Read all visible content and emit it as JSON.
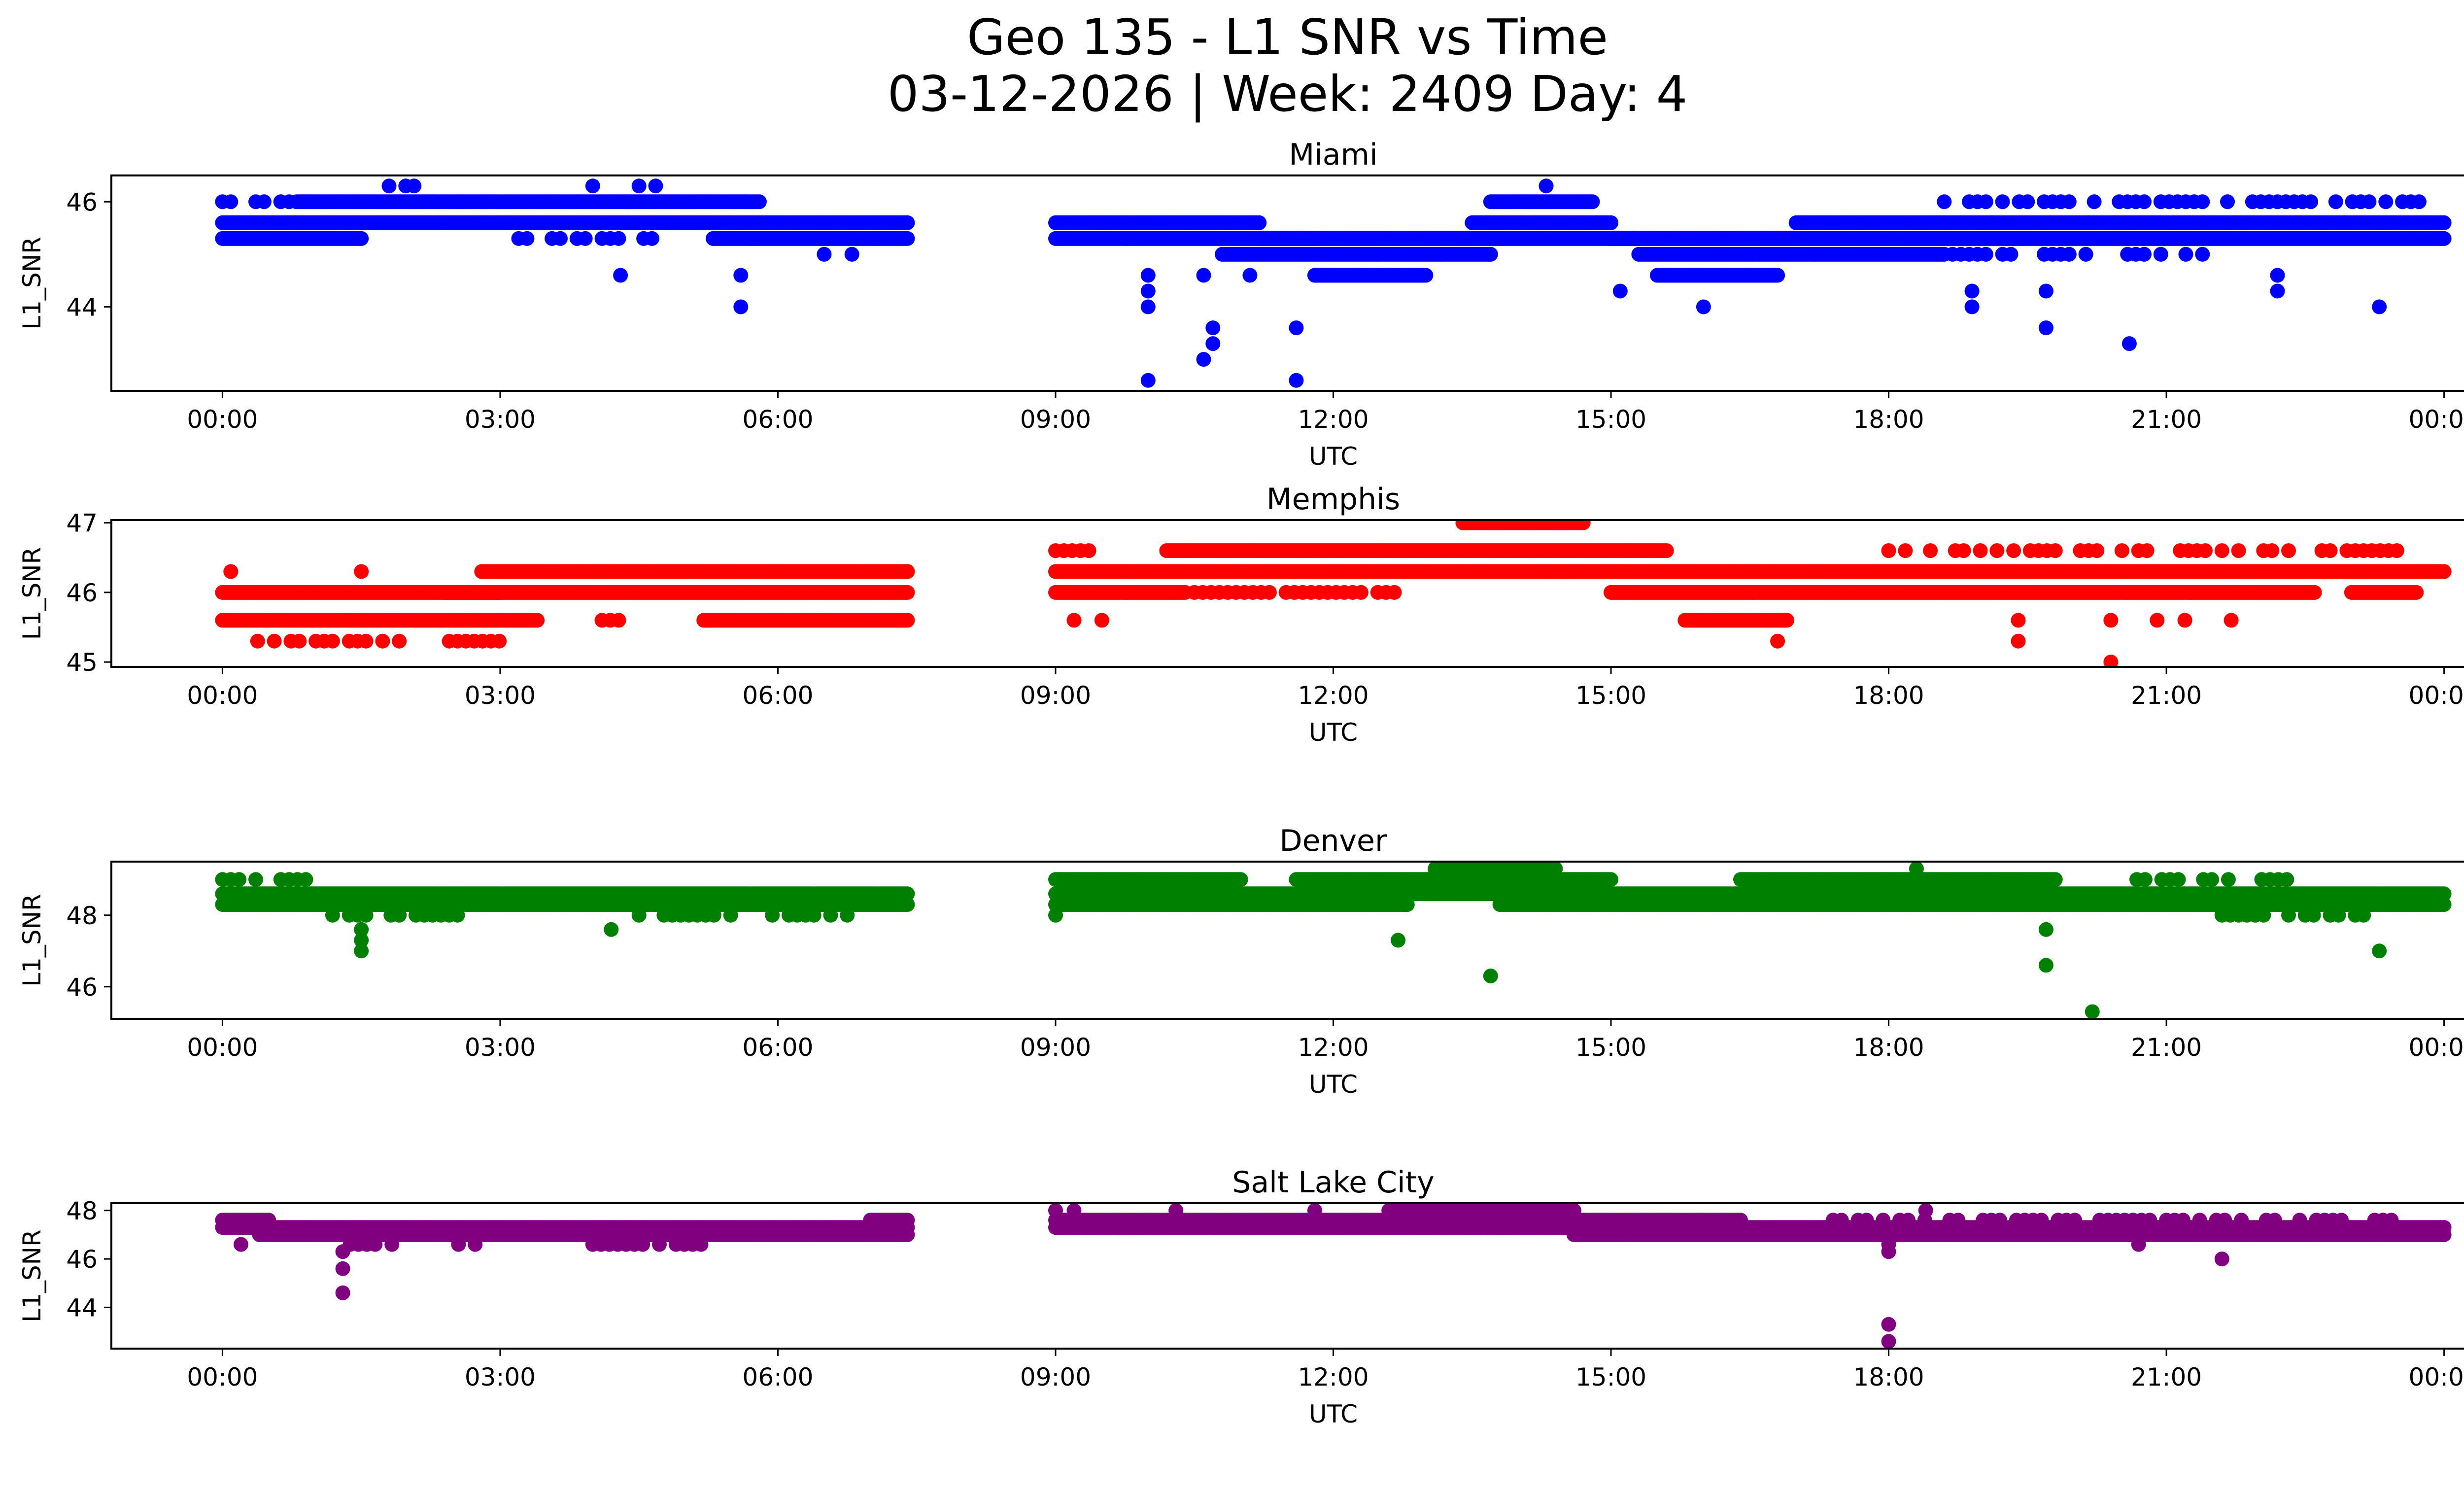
{
  "figure": {
    "title_line1": "Geo 135 - L1 SNR vs Time",
    "title_line2": "03-12-2026 | Week: 2409 Day: 4"
  },
  "chart_data": [
    {
      "type": "scatter",
      "title": "Miami",
      "xlabel": "UTC",
      "ylabel": "L1_SNR",
      "color": "#0000ff",
      "xlim_hours": [
        -1.2,
        25.2
      ],
      "ylim": [
        42.4,
        46.5
      ],
      "yticks": [
        44,
        46
      ],
      "xticks": [
        "00:00",
        "03:00",
        "06:00",
        "09:00",
        "12:00",
        "15:00",
        "18:00",
        "21:00",
        "00:00"
      ],
      "xtick_hours": [
        0,
        3,
        6,
        9,
        12,
        15,
        18,
        21,
        24
      ],
      "grid": false,
      "data_gap_hours": [
        7.4,
        9.0
      ],
      "bands": [
        {
          "y": 46.0,
          "from": 0.0,
          "to": 0.8,
          "sparse": true
        },
        {
          "y": 46.0,
          "from": 0.8,
          "to": 5.8
        },
        {
          "y": 46.3,
          "from": 1.8,
          "to": 2.2,
          "sparse": true
        },
        {
          "y": 46.3,
          "from": 4.5,
          "to": 4.8,
          "sparse": true
        },
        {
          "y": 45.6,
          "from": 0.0,
          "to": 7.4
        },
        {
          "y": 45.3,
          "from": 0.0,
          "to": 1.5
        },
        {
          "y": 45.3,
          "from": 3.2,
          "to": 4.8,
          "sparse": true
        },
        {
          "y": 45.3,
          "from": 5.3,
          "to": 7.4
        },
        {
          "y": 45.6,
          "from": 9.0,
          "to": 11.2
        },
        {
          "y": 45.3,
          "from": 9.0,
          "to": 11.8
        },
        {
          "y": 45.0,
          "from": 10.8,
          "to": 13.7
        },
        {
          "y": 45.3,
          "from": 11.2,
          "to": 15.3
        },
        {
          "y": 44.6,
          "from": 11.8,
          "to": 13.0
        },
        {
          "y": 46.0,
          "from": 13.7,
          "to": 14.8
        },
        {
          "y": 45.6,
          "from": 13.5,
          "to": 15.0
        },
        {
          "y": 45.3,
          "from": 15.0,
          "to": 24.0
        },
        {
          "y": 45.0,
          "from": 15.3,
          "to": 18.6
        },
        {
          "y": 44.6,
          "from": 15.5,
          "to": 16.8
        },
        {
          "y": 45.6,
          "from": 17.0,
          "to": 24.0
        },
        {
          "y": 46.0,
          "from": 18.6,
          "to": 23.8,
          "sparse": true
        },
        {
          "y": 45.0,
          "from": 18.6,
          "to": 21.5,
          "sparse": true
        }
      ],
      "points": [
        {
          "t": 4.3,
          "y": 44.6
        },
        {
          "t": 5.6,
          "y": 44.6
        },
        {
          "t": 5.6,
          "y": 44.0
        },
        {
          "t": 6.5,
          "y": 45.0
        },
        {
          "t": 6.8,
          "y": 45.0
        },
        {
          "t": 4.0,
          "y": 46.3
        },
        {
          "t": 10.0,
          "y": 44.6
        },
        {
          "t": 10.0,
          "y": 44.3
        },
        {
          "t": 10.0,
          "y": 44.0
        },
        {
          "t": 10.0,
          "y": 42.6
        },
        {
          "t": 10.6,
          "y": 44.6
        },
        {
          "t": 10.7,
          "y": 43.6
        },
        {
          "t": 10.7,
          "y": 43.3
        },
        {
          "t": 10.6,
          "y": 43.0
        },
        {
          "t": 11.1,
          "y": 44.6
        },
        {
          "t": 11.6,
          "y": 43.6
        },
        {
          "t": 11.6,
          "y": 42.6
        },
        {
          "t": 14.3,
          "y": 46.3
        },
        {
          "t": 15.1,
          "y": 44.3
        },
        {
          "t": 16.0,
          "y": 44.0
        },
        {
          "t": 18.9,
          "y": 44.3
        },
        {
          "t": 18.9,
          "y": 44.0
        },
        {
          "t": 19.7,
          "y": 44.3
        },
        {
          "t": 19.7,
          "y": 43.6
        },
        {
          "t": 20.6,
          "y": 43.3
        },
        {
          "t": 22.2,
          "y": 44.3
        },
        {
          "t": 23.3,
          "y": 44.0
        },
        {
          "t": 22.2,
          "y": 44.6
        }
      ]
    },
    {
      "type": "scatter",
      "title": "Memphis",
      "xlabel": "UTC",
      "ylabel": "L1_SNR",
      "color": "#ff0000",
      "xlim_hours": [
        -1.2,
        25.2
      ],
      "ylim": [
        44.93,
        47.04
      ],
      "yticks": [
        45,
        46,
        47
      ],
      "xticks": [
        "00:00",
        "03:00",
        "06:00",
        "09:00",
        "12:00",
        "15:00",
        "18:00",
        "21:00",
        "00:00"
      ],
      "xtick_hours": [
        0,
        3,
        6,
        9,
        12,
        15,
        18,
        21,
        24
      ],
      "grid": false,
      "data_gap_hours": [
        7.4,
        9.0
      ],
      "bands": [
        {
          "y": 46.3,
          "from": 0.0,
          "to": 0.2,
          "sparse": true
        },
        {
          "y": 46.0,
          "from": 0.0,
          "to": 3.0
        },
        {
          "y": 45.6,
          "from": 0.0,
          "to": 3.4
        },
        {
          "y": 45.3,
          "from": 0.2,
          "to": 3.1,
          "sparse": true
        },
        {
          "y": 46.3,
          "from": 2.8,
          "to": 7.4
        },
        {
          "y": 46.0,
          "from": 2.4,
          "to": 7.4
        },
        {
          "y": 45.6,
          "from": 4.1,
          "to": 4.3,
          "sparse": true
        },
        {
          "y": 45.6,
          "from": 5.2,
          "to": 7.4
        },
        {
          "y": 46.6,
          "from": 9.0,
          "to": 9.4,
          "sparse": true
        },
        {
          "y": 46.3,
          "from": 9.0,
          "to": 24.0
        },
        {
          "y": 46.0,
          "from": 9.0,
          "to": 10.4
        },
        {
          "y": 46.0,
          "from": 10.5,
          "to": 12.7,
          "sparse": true
        },
        {
          "y": 46.6,
          "from": 10.2,
          "to": 15.6
        },
        {
          "y": 47.0,
          "from": 13.4,
          "to": 14.7
        },
        {
          "y": 46.0,
          "from": 15.0,
          "to": 22.6
        },
        {
          "y": 45.6,
          "from": 15.8,
          "to": 16.9
        },
        {
          "y": 46.6,
          "from": 18.0,
          "to": 23.8,
          "sparse": true
        },
        {
          "y": 46.0,
          "from": 23.0,
          "to": 23.7
        }
      ],
      "points": [
        {
          "t": 1.5,
          "y": 46.3
        },
        {
          "t": 9.2,
          "y": 45.6
        },
        {
          "t": 9.5,
          "y": 45.6
        },
        {
          "t": 16.8,
          "y": 45.3
        },
        {
          "t": 19.4,
          "y": 45.6
        },
        {
          "t": 19.4,
          "y": 45.3
        },
        {
          "t": 20.4,
          "y": 45.6
        },
        {
          "t": 20.4,
          "y": 45.0
        },
        {
          "t": 20.9,
          "y": 45.6
        },
        {
          "t": 21.2,
          "y": 45.6
        },
        {
          "t": 21.7,
          "y": 45.6
        }
      ]
    },
    {
      "type": "scatter",
      "title": "Denver",
      "xlabel": "UTC",
      "ylabel": "L1_SNR",
      "color": "#008000",
      "xlim_hours": [
        -1.2,
        25.2
      ],
      "ylim": [
        45.1,
        49.5
      ],
      "yticks": [
        46,
        48
      ],
      "xticks": [
        "00:00",
        "03:00",
        "06:00",
        "09:00",
        "12:00",
        "15:00",
        "18:00",
        "21:00",
        "00:00"
      ],
      "xtick_hours": [
        0,
        3,
        6,
        9,
        12,
        15,
        18,
        21,
        24
      ],
      "grid": false,
      "data_gap_hours": [
        7.4,
        9.0
      ],
      "bands": [
        {
          "y": 49.0,
          "from": 0.0,
          "to": 0.9,
          "sparse": true
        },
        {
          "y": 48.6,
          "from": 0.0,
          "to": 7.4
        },
        {
          "y": 48.3,
          "from": 0.0,
          "to": 7.4
        },
        {
          "y": 48.0,
          "from": 1.1,
          "to": 2.6,
          "sparse": true
        },
        {
          "y": 48.0,
          "from": 4.5,
          "to": 6.8,
          "sparse": true
        },
        {
          "y": 49.0,
          "from": 9.0,
          "to": 11.0
        },
        {
          "y": 48.6,
          "from": 9.0,
          "to": 24.0
        },
        {
          "y": 48.3,
          "from": 9.0,
          "to": 12.8
        },
        {
          "y": 49.0,
          "from": 11.6,
          "to": 15.0
        },
        {
          "y": 49.3,
          "from": 13.1,
          "to": 14.4
        },
        {
          "y": 48.3,
          "from": 13.8,
          "to": 24.0
        },
        {
          "y": 49.0,
          "from": 16.4,
          "to": 19.8
        },
        {
          "y": 49.0,
          "from": 20.5,
          "to": 22.5,
          "sparse": true
        },
        {
          "y": 48.0,
          "from": 21.6,
          "to": 23.5,
          "sparse": true
        }
      ],
      "points": [
        {
          "t": 1.5,
          "y": 47.6
        },
        {
          "t": 1.5,
          "y": 47.3
        },
        {
          "t": 1.5,
          "y": 47.0
        },
        {
          "t": 4.2,
          "y": 47.6
        },
        {
          "t": 12.7,
          "y": 47.3
        },
        {
          "t": 13.7,
          "y": 46.3
        },
        {
          "t": 18.3,
          "y": 49.3
        },
        {
          "t": 19.7,
          "y": 47.6
        },
        {
          "t": 19.7,
          "y": 46.6
        },
        {
          "t": 20.2,
          "y": 45.3
        },
        {
          "t": 23.3,
          "y": 47.0
        },
        {
          "t": 9.0,
          "y": 48.0
        }
      ]
    },
    {
      "type": "scatter",
      "title": "Salt Lake City",
      "xlabel": "UTC",
      "ylabel": "L1_SNR",
      "color": "#800080",
      "xlim_hours": [
        -1.2,
        25.2
      ],
      "ylim": [
        42.3,
        48.3
      ],
      "yticks": [
        44,
        46,
        48
      ],
      "xticks": [
        "00:00",
        "03:00",
        "06:00",
        "09:00",
        "12:00",
        "15:00",
        "18:00",
        "21:00",
        "00:00"
      ],
      "xtick_hours": [
        0,
        3,
        6,
        9,
        12,
        15,
        18,
        21,
        24
      ],
      "grid": false,
      "data_gap_hours": [
        7.4,
        9.0
      ],
      "bands": [
        {
          "y": 47.6,
          "from": 0.0,
          "to": 0.5
        },
        {
          "y": 47.3,
          "from": 0.0,
          "to": 7.4
        },
        {
          "y": 47.0,
          "from": 0.4,
          "to": 7.4
        },
        {
          "y": 46.6,
          "from": 1.2,
          "to": 2.8,
          "sparse": true
        },
        {
          "y": 46.6,
          "from": 4.0,
          "to": 5.3,
          "sparse": true
        },
        {
          "y": 47.6,
          "from": 7.0,
          "to": 7.4
        },
        {
          "y": 47.6,
          "from": 9.0,
          "to": 16.4
        },
        {
          "y": 47.3,
          "from": 9.0,
          "to": 24.0
        },
        {
          "y": 48.0,
          "from": 12.6,
          "to": 14.6
        },
        {
          "y": 47.0,
          "from": 14.6,
          "to": 24.0
        },
        {
          "y": 47.6,
          "from": 17.4,
          "to": 23.8,
          "sparse": true
        }
      ],
      "points": [
        {
          "t": 0.2,
          "y": 46.6
        },
        {
          "t": 1.3,
          "y": 46.3
        },
        {
          "t": 1.3,
          "y": 45.6
        },
        {
          "t": 1.3,
          "y": 44.6
        },
        {
          "t": 9.0,
          "y": 48.0
        },
        {
          "t": 9.2,
          "y": 48.0
        },
        {
          "t": 10.3,
          "y": 48.0
        },
        {
          "t": 11.8,
          "y": 48.0
        },
        {
          "t": 18.0,
          "y": 46.6
        },
        {
          "t": 18.0,
          "y": 46.3
        },
        {
          "t": 18.0,
          "y": 43.3
        },
        {
          "t": 18.0,
          "y": 42.6
        },
        {
          "t": 18.4,
          "y": 48.0
        },
        {
          "t": 21.6,
          "y": 46.0
        },
        {
          "t": 20.7,
          "y": 46.6
        }
      ]
    }
  ]
}
